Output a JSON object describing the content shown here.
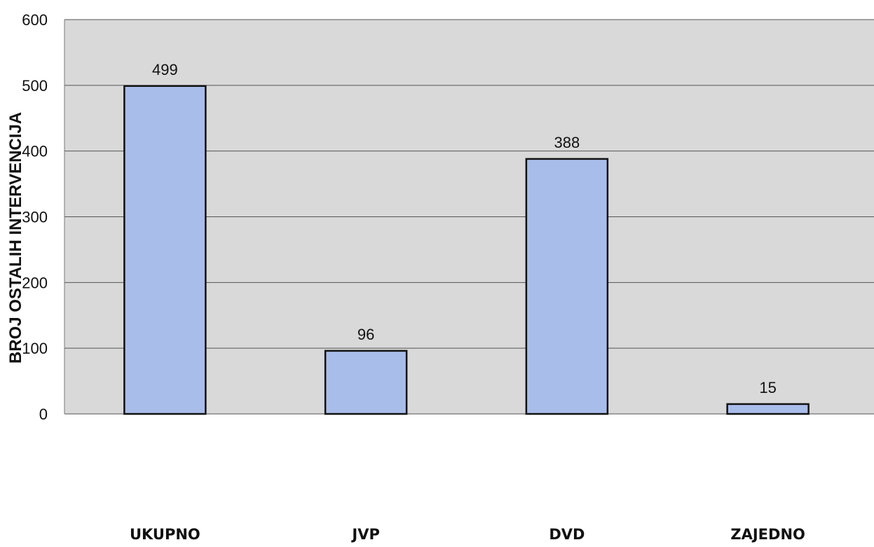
{
  "chart_data": {
    "type": "bar",
    "title": "",
    "xlabel": "",
    "ylabel": "BROJ OSTALIH INTERVENCIJA",
    "categories": [
      "UKUPNO",
      "JVP",
      "DVD",
      "ZAJEDNO"
    ],
    "values": [
      499,
      96,
      388,
      15
    ],
    "data_labels": [
      "499",
      "96",
      "388",
      "15"
    ],
    "ylim": [
      0,
      600
    ],
    "yticks": [
      0,
      100,
      200,
      300,
      400,
      500,
      600
    ],
    "ytick_labels": [
      "0",
      "100",
      "200",
      "300",
      "400",
      "500",
      "600"
    ],
    "grid": true,
    "legend": "none",
    "colors": {
      "bar_fill": "#a9bdea",
      "bar_stroke": "#111111",
      "plot_background": "#d9d9d9",
      "gridline": "#555555"
    }
  }
}
